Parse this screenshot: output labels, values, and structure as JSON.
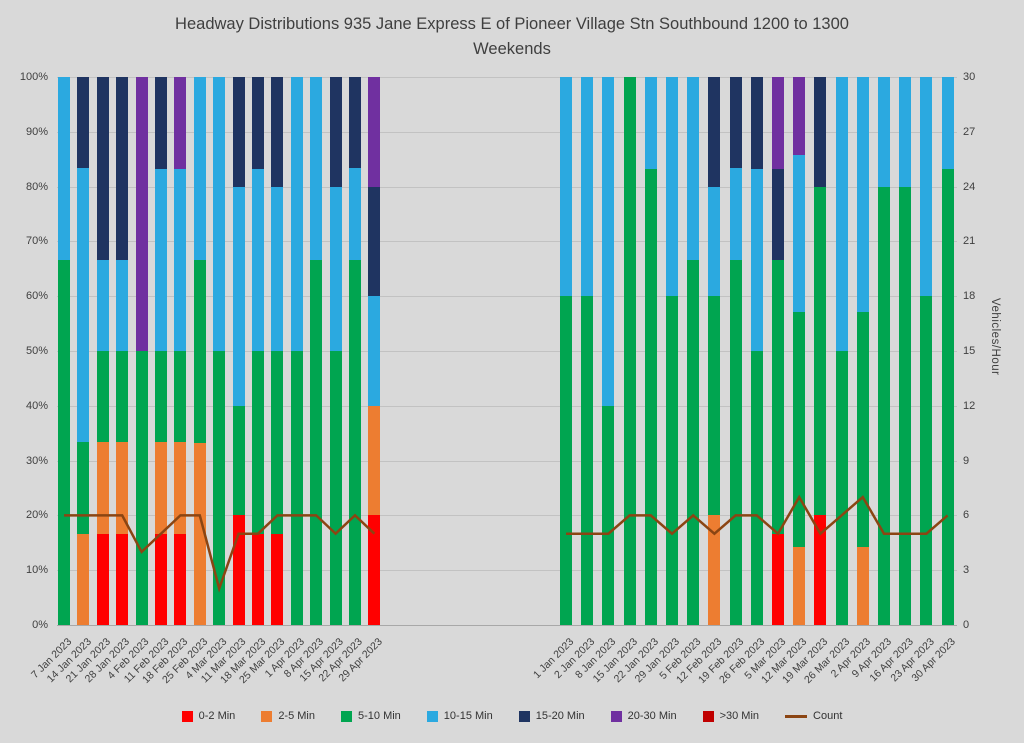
{
  "title": {
    "line1": "Headway Distributions 935 Jane Express  E of Pioneer Village Stn Southbound 1200 to 1300",
    "line2": "Weekends"
  },
  "chart_data": {
    "type": "bar",
    "variant": "100-percent-stacked-columns-with-count-line",
    "title": "Headway Distributions 935 Jane Express E of Pioneer Village Stn Southbound 1200 to 1300 Weekends",
    "left_axis": {
      "min": 0,
      "max": 100,
      "step": 10,
      "format": "percent"
    },
    "right_axis": {
      "min": 0,
      "max": 30,
      "step": 3,
      "label": "Vehicles/Hour"
    },
    "series_names": [
      "0-2 Min",
      "2-5 Min",
      "5-10 Min",
      "10-15 Min",
      "15-20 Min",
      "20-30 Min",
      ">30 Min"
    ],
    "series_colors": [
      "#FF0000",
      "#ED7D31",
      "#00A550",
      "#2BA9E0",
      "#1F3461",
      "#7030A0",
      "#C00000"
    ],
    "count_series": {
      "name": "Count",
      "color": "#8B4513"
    },
    "groups": [
      {
        "name": "group-1",
        "categories": [
          "7 Jan 2023",
          "14 Jan 2023",
          "21 Jan 2023",
          "28 Jan 2023",
          "4 Feb 2023",
          "11 Feb 2023",
          "18 Feb 2023",
          "25 Feb 2023",
          "4 Mar 2023",
          "11 Mar 2023",
          "18 Mar 2023",
          "25 Mar 2023",
          "1 Apr 2023",
          "8 Apr 2023",
          "15 Apr 2023",
          "22 Apr 2023",
          "29 Apr 2023"
        ],
        "stacks": [
          [
            0,
            0,
            66.7,
            33.3,
            0,
            0,
            0
          ],
          [
            0,
            16.7,
            16.7,
            50,
            16.6,
            0,
            0
          ],
          [
            16.7,
            16.7,
            16.6,
            16.7,
            33.3,
            0,
            0
          ],
          [
            16.7,
            16.7,
            16.6,
            16.7,
            33.3,
            0,
            0
          ],
          [
            0,
            0,
            50,
            0,
            0,
            50,
            0
          ],
          [
            16.7,
            16.7,
            16.6,
            33.3,
            16.7,
            0,
            0
          ],
          [
            16.7,
            16.7,
            16.6,
            33.3,
            0,
            16.7,
            0
          ],
          [
            0,
            33.3,
            33.4,
            33.3,
            0,
            0,
            0
          ],
          [
            0,
            0,
            50,
            50,
            0,
            0,
            0
          ],
          [
            20,
            0,
            20,
            40,
            20,
            0,
            0
          ],
          [
            16.7,
            0,
            33.3,
            33.3,
            16.7,
            0,
            0
          ],
          [
            16.7,
            0,
            33.3,
            30,
            20,
            0,
            0
          ],
          [
            0,
            0,
            50,
            50,
            0,
            0,
            0
          ],
          [
            0,
            0,
            66.7,
            33.3,
            0,
            0,
            0
          ],
          [
            0,
            0,
            50,
            30,
            20,
            0,
            0
          ],
          [
            0,
            0,
            66.7,
            16.7,
            16.6,
            0,
            0
          ],
          [
            20,
            20,
            0,
            20,
            20,
            20,
            0
          ]
        ],
        "counts": [
          6,
          6,
          6,
          6,
          4,
          5,
          6,
          6,
          2,
          5,
          5,
          6,
          6,
          6,
          5,
          6,
          5
        ]
      },
      {
        "name": "group-2",
        "categories": [
          "1 Jan 2023",
          "2 Jan 2023",
          "8 Jan 2023",
          "15 Jan 2023",
          "22 Jan 2023",
          "29 Jan 2023",
          "5 Feb 2023",
          "12 Feb 2023",
          "19 Feb 2023",
          "26 Feb 2023",
          "5 Mar 2023",
          "12 Mar 2023",
          "19 Mar 2023",
          "26 Mar 2023",
          "2 Apr 2023",
          "9 Apr 2023",
          "16 Apr 2023",
          "23 Apr 2023",
          "30 Apr 2023"
        ],
        "stacks": [
          [
            0,
            0,
            60,
            40,
            0,
            0,
            0
          ],
          [
            0,
            0,
            60,
            40,
            0,
            0,
            0
          ],
          [
            0,
            0,
            40,
            60,
            0,
            0,
            0
          ],
          [
            0,
            0,
            100,
            0,
            0,
            0,
            0
          ],
          [
            0,
            0,
            83.3,
            16.7,
            0,
            0,
            0
          ],
          [
            0,
            0,
            60,
            40,
            0,
            0,
            0
          ],
          [
            0,
            0,
            66.7,
            33.3,
            0,
            0,
            0
          ],
          [
            0,
            20,
            40,
            20,
            20,
            0,
            0
          ],
          [
            0,
            0,
            66.7,
            16.7,
            16.6,
            0,
            0
          ],
          [
            0,
            0,
            50,
            33.3,
            16.7,
            0,
            0
          ],
          [
            16.7,
            0,
            50,
            0,
            16.6,
            16.7,
            0
          ],
          [
            0,
            14.3,
            42.9,
            28.5,
            0,
            14.3,
            0
          ],
          [
            20,
            0,
            60,
            0,
            20,
            0,
            0
          ],
          [
            0,
            0,
            50,
            50,
            0,
            0,
            0
          ],
          [
            0,
            14.3,
            42.9,
            42.8,
            0,
            0,
            0
          ],
          [
            0,
            0,
            80,
            20,
            0,
            0,
            0
          ],
          [
            0,
            0,
            80,
            20,
            0,
            0,
            0
          ],
          [
            0,
            0,
            60,
            40,
            0,
            0,
            0
          ],
          [
            0,
            0,
            83.3,
            16.7,
            0,
            0,
            0
          ]
        ],
        "counts": [
          5,
          5,
          5,
          6,
          6,
          5,
          6,
          5,
          6,
          6,
          5,
          7,
          5,
          6,
          7,
          5,
          5,
          5,
          6
        ]
      }
    ],
    "legend": [
      {
        "label": "0-2 Min",
        "color": "#FF0000",
        "type": "box"
      },
      {
        "label": "2-5 Min",
        "color": "#ED7D31",
        "type": "box"
      },
      {
        "label": "5-10 Min",
        "color": "#00A550",
        "type": "box"
      },
      {
        "label": "10-15 Min",
        "color": "#2BA9E0",
        "type": "box"
      },
      {
        "label": "15-20 Min",
        "color": "#1F3461",
        "type": "box"
      },
      {
        "label": "20-30 Min",
        "color": "#7030A0",
        "type": "box"
      },
      {
        "label": ">30 Min",
        "color": "#C00000",
        "type": "box"
      },
      {
        "label": "Count",
        "color": "#8B4513",
        "type": "line"
      }
    ]
  }
}
